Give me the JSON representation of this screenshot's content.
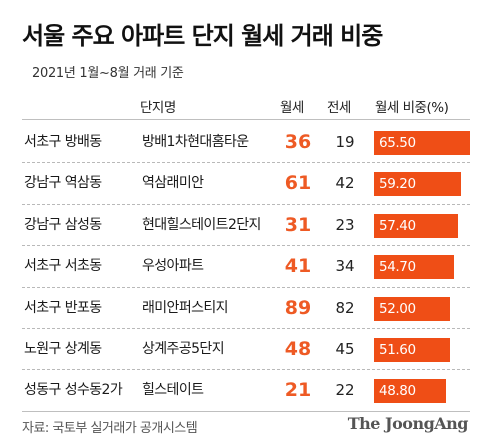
{
  "title": "서울 주요 아파트 단지 월세 거래 비중",
  "subtitle": "2021년 1월~8월 거래 기준",
  "source": "자료: 국토부 실거래가 공개시스템",
  "logo": "The JoongAng",
  "colors": {
    "accent": "#ef4e16",
    "monthly_text": "#ee5a24"
  },
  "chart_data": {
    "type": "table",
    "columns": [
      "",
      "단지명",
      "월세",
      "전세",
      "월세 비중(%)"
    ],
    "ratio_scale_max": 65.5,
    "rows": [
      {
        "region": "서초구 방배동",
        "apartment": "방배1차현대홈타운",
        "monthly": 36,
        "jeonse": 19,
        "ratio": 65.5,
        "ratio_label": "65.50"
      },
      {
        "region": "강남구 역삼동",
        "apartment": "역삼래미안",
        "monthly": 61,
        "jeonse": 42,
        "ratio": 59.2,
        "ratio_label": "59.20"
      },
      {
        "region": "강남구 삼성동",
        "apartment": "현대힐스테이트2단지",
        "monthly": 31,
        "jeonse": 23,
        "ratio": 57.4,
        "ratio_label": "57.40"
      },
      {
        "region": "서초구 서초동",
        "apartment": "우성아파트",
        "monthly": 41,
        "jeonse": 34,
        "ratio": 54.7,
        "ratio_label": "54.70"
      },
      {
        "region": "서초구 반포동",
        "apartment": "래미안퍼스티지",
        "monthly": 89,
        "jeonse": 82,
        "ratio": 52.0,
        "ratio_label": "52.00"
      },
      {
        "region": "노원구 상계동",
        "apartment": "상계주공5단지",
        "monthly": 48,
        "jeonse": 45,
        "ratio": 51.6,
        "ratio_label": "51.60"
      },
      {
        "region": "성동구 성수동2가",
        "apartment": "힐스테이트",
        "monthly": 21,
        "jeonse": 22,
        "ratio": 48.8,
        "ratio_label": "48.80"
      }
    ]
  }
}
